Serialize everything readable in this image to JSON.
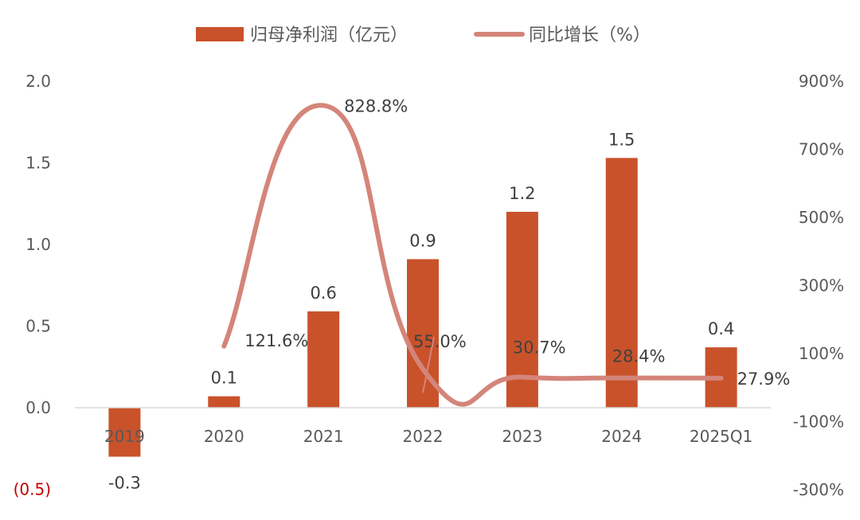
{
  "chart_data": {
    "type": "bar",
    "categories": [
      "2019",
      "2020",
      "2021",
      "2022",
      "2023",
      "2024",
      "2025Q1"
    ],
    "series": [
      {
        "name": "归母净利润（亿元）",
        "type": "bar",
        "axis": "left",
        "values": [
          -0.3,
          0.07,
          0.59,
          0.91,
          1.2,
          1.53,
          0.37
        ],
        "labels": [
          "-0.3",
          "0.1",
          "0.6",
          "0.9",
          "1.2",
          "1.5",
          "0.4"
        ],
        "color": "#C9522A"
      },
      {
        "name": "同比增长（%）",
        "type": "line",
        "axis": "right",
        "values": [
          null,
          121.6,
          828.8,
          55.0,
          30.7,
          28.4,
          27.9
        ],
        "labels": [
          "",
          "121.6%",
          "828.8%",
          "55.0%",
          "30.7%",
          "28.4%",
          "27.9%"
        ],
        "color": "#D4857A"
      }
    ],
    "y_left": {
      "ylim": [
        -0.5,
        2.0
      ],
      "ticks": [
        "2.0",
        "1.5",
        "1.0",
        "0.5",
        "0.0",
        "(0.5)"
      ],
      "tick_values": [
        2.0,
        1.5,
        1.0,
        0.5,
        0.0,
        -0.5
      ],
      "negative_tick_color": "#C00000"
    },
    "y_right": {
      "ylim": [
        -300,
        900
      ],
      "ticks": [
        "900%",
        "700%",
        "500%",
        "300%",
        "100%",
        "-100%",
        "-300%"
      ],
      "tick_values": [
        900,
        700,
        500,
        300,
        100,
        -100,
        -300
      ]
    },
    "legend": "top-center",
    "grid": false
  }
}
